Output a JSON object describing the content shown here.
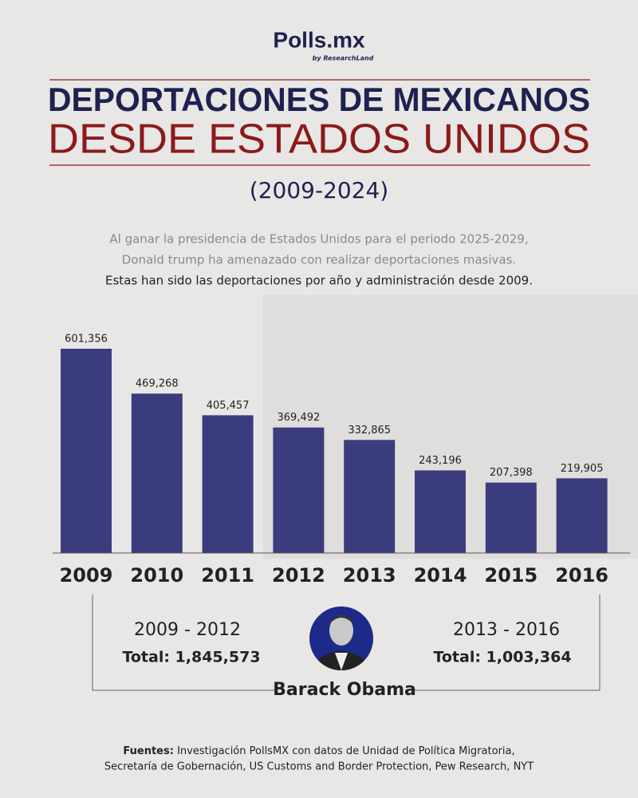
{
  "header": {
    "logo": "Polls.mx",
    "tagline": "by ResearchLand",
    "title_line1": "DEPORTACIONES DE MEXICANOS",
    "title_line2": "DESDE ESTADOS UNIDOS",
    "period": "(2009-2024)",
    "intro": [
      "Al ganar la presidencia de Estados Unidos para el periodo 2025-2029,",
      "Donald trump ha amenazado con realizar deportaciones masivas.",
      "Estas han sido las deportaciones por año y administración desde 2009."
    ]
  },
  "chart_data": {
    "type": "bar",
    "categories": [
      "2009",
      "2010",
      "2011",
      "2012",
      "2013",
      "2014",
      "2015",
      "2016"
    ],
    "values": [
      601356,
      469268,
      405457,
      369492,
      332865,
      243196,
      207398,
      219905
    ],
    "value_labels": [
      "601,356",
      "469,268",
      "405,457",
      "369,492",
      "332,865",
      "243,196",
      "207,398",
      "219,905"
    ],
    "color": "#3b3c7e"
  },
  "administration": {
    "periods": [
      {
        "range": "2009 - 2012",
        "total": "Total: 1,845,573"
      },
      {
        "range": "2013 - 2016",
        "total": "Total: 1,003,364"
      }
    ],
    "president": "Barack Obama"
  },
  "sources": {
    "label": "Fuentes:",
    "lines": [
      "Investigación PollsMX con datos de Unidad de Política Migratoria,",
      "Secretaría de Gobernación, US Customs and Border Protection, Pew Research, NYT"
    ]
  }
}
